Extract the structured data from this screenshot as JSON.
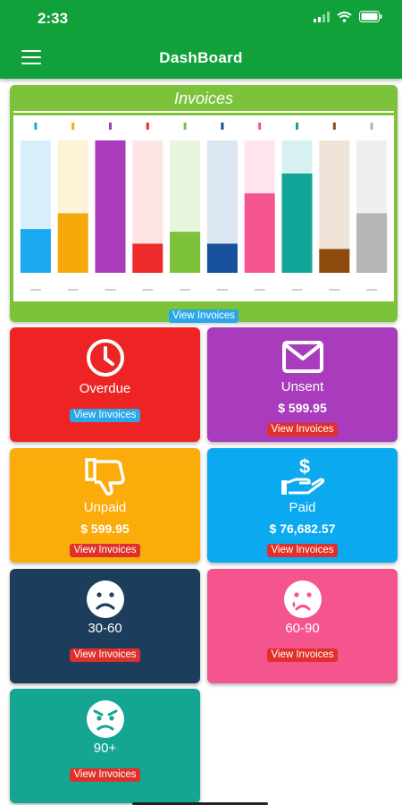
{
  "status_bar": {
    "time": "2:33"
  },
  "header": {
    "title": "DashBoard",
    "menu_icon": "hamburger-menu-icon"
  },
  "invoices_card": {
    "title": "Invoices",
    "link": "View Invoices",
    "background": "#7cc33a"
  },
  "chart_data": {
    "type": "bar",
    "categories": [
      "",
      "",
      "",
      "",
      "",
      "",
      "",
      "",
      "",
      ""
    ],
    "values": [
      0.33,
      0.45,
      1.0,
      0.22,
      0.31,
      0.22,
      0.6,
      0.75,
      0.18,
      0.45
    ],
    "ylim": [
      0,
      1
    ],
    "bar_colors": [
      "#1aa8f0",
      "#f5a90a",
      "#a93bbd",
      "#ee2a2a",
      "#7cc33a",
      "#16509a",
      "#f45591",
      "#10a596",
      "#8c4a0c",
      "#b5b5b5"
    ],
    "track_colors": [
      "#d8effb",
      "#fdf3d6",
      "#f0dcf4",
      "#fde4e4",
      "#e9f6de",
      "#dbe6f3",
      "#fde4ee",
      "#d6f1ef",
      "#f0e4d8",
      "#efefef"
    ]
  },
  "tiles": [
    {
      "label": "Overdue",
      "amount": "",
      "link": "View Invoices",
      "icon": "clock-icon",
      "color": "#ee2424",
      "link_style": "blue"
    },
    {
      "label": "Unsent",
      "amount": "$ 599.95",
      "link": "View Invoices",
      "icon": "envelope-icon",
      "color": "#a93bbd",
      "link_style": "red"
    },
    {
      "label": "Unpaid",
      "amount": "$ 599.95",
      "link": "View Invoices",
      "icon": "thumbs-down-icon",
      "color": "#fbab0a",
      "link_style": "red"
    },
    {
      "label": "Paid",
      "amount": "$ 76,682.57",
      "link": "View Invoices",
      "icon": "hand-dollar-icon",
      "color": "#0aa9f0",
      "link_style": "red"
    },
    {
      "label": "30-60",
      "amount": "",
      "link": "View Invoices",
      "icon": "sad-face-icon",
      "color": "#1c3d5c",
      "link_style": "red"
    },
    {
      "label": "60-90",
      "amount": "",
      "link": "View Invoices",
      "icon": "crying-face-icon",
      "color": "#f4558f",
      "link_style": "red"
    },
    {
      "label": "90+",
      "amount": "",
      "link": "View Invoices",
      "icon": "angry-face-icon",
      "color": "#14a593",
      "link_style": "red"
    }
  ]
}
